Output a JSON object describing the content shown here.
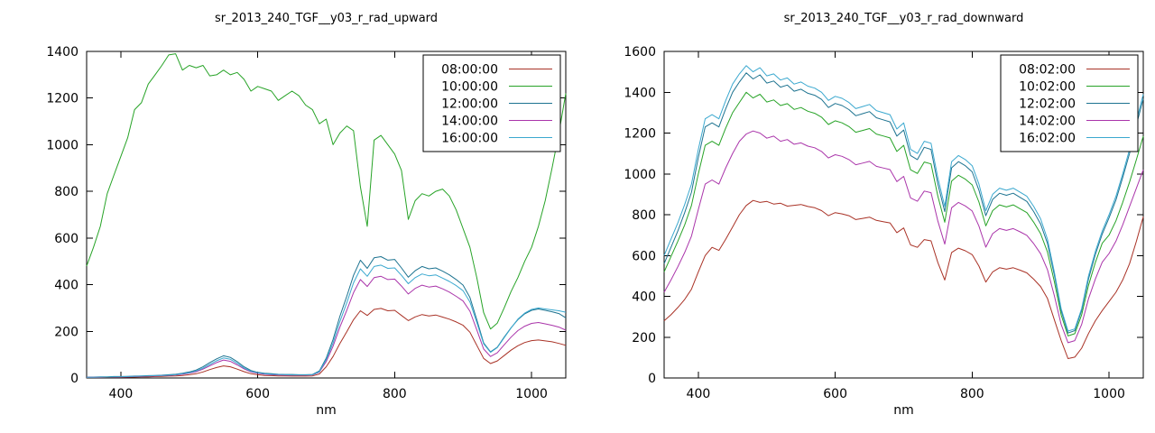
{
  "page": {
    "background": "#ffffff",
    "axis_color": "#000000",
    "text_color": "#000000"
  },
  "chart_data": [
    {
      "type": "line",
      "title": "sr_2013_240_TGF__y03_r_rad_upward",
      "xlabel": "nm",
      "ylabel": "",
      "xlim": [
        350,
        1050
      ],
      "ylim": [
        0,
        1400
      ],
      "xticks": [
        400,
        600,
        800,
        1000
      ],
      "yticks": [
        0,
        200,
        400,
        600,
        800,
        1000,
        1200,
        1400
      ],
      "grid": false,
      "legend_position": "top-right",
      "x": [
        350,
        360,
        370,
        380,
        390,
        400,
        410,
        420,
        430,
        440,
        450,
        460,
        470,
        480,
        490,
        500,
        510,
        520,
        530,
        540,
        550,
        560,
        570,
        580,
        590,
        600,
        610,
        620,
        630,
        640,
        650,
        660,
        670,
        680,
        690,
        700,
        710,
        720,
        730,
        740,
        750,
        760,
        770,
        780,
        790,
        800,
        810,
        820,
        830,
        840,
        850,
        860,
        870,
        880,
        890,
        900,
        910,
        920,
        930,
        940,
        950,
        960,
        970,
        980,
        990,
        1000,
        1010,
        1020,
        1030,
        1040,
        1050
      ],
      "series": [
        {
          "name": "08:00:00",
          "color": "#a93226",
          "values": [
            2,
            2,
            2,
            3,
            3,
            3,
            4,
            4,
            5,
            5,
            6,
            7,
            8,
            9,
            11,
            14,
            18,
            26,
            36,
            45,
            52,
            48,
            38,
            27,
            18,
            14,
            11,
            10,
            9,
            9,
            8,
            8,
            8,
            9,
            17,
            48,
            92,
            148,
            198,
            250,
            288,
            268,
            294,
            298,
            288,
            290,
            268,
            246,
            262,
            272,
            266,
            270,
            261,
            252,
            240,
            226,
            196,
            140,
            84,
            62,
            73,
            96,
            119,
            138,
            152,
            160,
            163,
            159,
            155,
            148,
            140
          ]
        },
        {
          "name": "10:00:00",
          "color": "#27a327",
          "values": [
            480,
            560,
            650,
            790,
            870,
            950,
            1030,
            1150,
            1180,
            1260,
            1300,
            1340,
            1385,
            1390,
            1320,
            1340,
            1330,
            1340,
            1295,
            1300,
            1320,
            1300,
            1310,
            1280,
            1230,
            1250,
            1240,
            1230,
            1190,
            1210,
            1230,
            1210,
            1170,
            1150,
            1090,
            1110,
            1000,
            1050,
            1080,
            1060,
            820,
            650,
            1020,
            1040,
            1000,
            960,
            890,
            680,
            760,
            790,
            780,
            800,
            810,
            780,
            720,
            640,
            560,
            430,
            280,
            210,
            235,
            300,
            370,
            430,
            500,
            560,
            650,
            760,
            900,
            1050,
            1220
          ]
        },
        {
          "name": "12:00:00",
          "color": "#1d7390",
          "values": [
            4,
            4,
            5,
            5,
            6,
            6,
            7,
            8,
            9,
            10,
            11,
            12,
            14,
            16,
            20,
            26,
            34,
            48,
            66,
            82,
            95,
            88,
            70,
            48,
            32,
            24,
            20,
            18,
            16,
            15,
            15,
            14,
            14,
            15,
            30,
            85,
            165,
            265,
            350,
            440,
            505,
            470,
            515,
            520,
            505,
            508,
            472,
            432,
            460,
            478,
            468,
            472,
            458,
            442,
            422,
            398,
            345,
            250,
            150,
            112,
            132,
            175,
            215,
            250,
            275,
            290,
            296,
            290,
            284,
            276,
            258
          ]
        },
        {
          "name": "14:00:00",
          "color": "#aa35aa",
          "values": [
            3,
            3,
            3,
            4,
            4,
            5,
            5,
            6,
            7,
            8,
            9,
            10,
            11,
            13,
            16,
            21,
            27,
            38,
            52,
            66,
            77,
            71,
            56,
            39,
            26,
            20,
            16,
            14,
            13,
            12,
            12,
            12,
            12,
            13,
            25,
            70,
            136,
            218,
            290,
            366,
            422,
            392,
            430,
            436,
            422,
            424,
            394,
            360,
            384,
            398,
            390,
            394,
            382,
            368,
            350,
            330,
            286,
            206,
            124,
            92,
            108,
            142,
            175,
            203,
            222,
            234,
            238,
            232,
            226,
            218,
            205
          ]
        },
        {
          "name": "16:00:00",
          "color": "#3aa8cf",
          "values": [
            3,
            3,
            4,
            4,
            5,
            5,
            6,
            7,
            8,
            9,
            10,
            11,
            12,
            14,
            18,
            23,
            30,
            42,
            58,
            74,
            86,
            80,
            63,
            43,
            29,
            22,
            18,
            16,
            15,
            14,
            13,
            13,
            13,
            14,
            27,
            78,
            150,
            242,
            322,
            408,
            468,
            436,
            478,
            484,
            470,
            472,
            440,
            404,
            430,
            446,
            438,
            442,
            428,
            414,
            396,
            374,
            326,
            238,
            146,
            110,
            130,
            172,
            214,
            252,
            278,
            294,
            300,
            296,
            292,
            288,
            282
          ]
        }
      ]
    },
    {
      "type": "line",
      "title": "sr_2013_240_TGF__y03_r_rad_downward",
      "xlabel": "nm",
      "ylabel": "",
      "xlim": [
        350,
        1050
      ],
      "ylim": [
        0,
        1600
      ],
      "xticks": [
        400,
        600,
        800,
        1000
      ],
      "yticks": [
        0,
        200,
        400,
        600,
        800,
        1000,
        1200,
        1400,
        1600
      ],
      "grid": false,
      "legend_position": "top-right",
      "x": [
        350,
        360,
        370,
        380,
        390,
        400,
        410,
        420,
        430,
        440,
        450,
        460,
        470,
        480,
        490,
        500,
        510,
        520,
        530,
        540,
        550,
        560,
        570,
        580,
        590,
        600,
        610,
        620,
        630,
        640,
        650,
        660,
        670,
        680,
        690,
        700,
        710,
        720,
        730,
        740,
        750,
        760,
        770,
        780,
        790,
        800,
        810,
        820,
        830,
        840,
        850,
        860,
        870,
        880,
        890,
        900,
        910,
        920,
        930,
        940,
        950,
        960,
        970,
        980,
        990,
        1000,
        1010,
        1020,
        1030,
        1040,
        1050
      ],
      "series": [
        {
          "name": "08:02:00",
          "color": "#a93226",
          "values": [
            280,
            310,
            345,
            385,
            435,
            520,
            600,
            640,
            625,
            680,
            740,
            800,
            845,
            870,
            860,
            865,
            852,
            856,
            842,
            846,
            850,
            840,
            834,
            820,
            795,
            810,
            804,
            795,
            776,
            782,
            788,
            772,
            766,
            760,
            712,
            735,
            652,
            640,
            678,
            672,
            565,
            480,
            615,
            636,
            623,
            604,
            548,
            470,
            520,
            540,
            533,
            540,
            528,
            515,
            484,
            448,
            390,
            286,
            184,
            95,
            102,
            146,
            218,
            280,
            330,
            375,
            420,
            480,
            560,
            670,
            790
          ]
        },
        {
          "name": "10:02:00",
          "color": "#27a327",
          "values": [
            520,
            595,
            670,
            750,
            845,
            1000,
            1140,
            1160,
            1140,
            1225,
            1300,
            1350,
            1400,
            1372,
            1390,
            1352,
            1362,
            1335,
            1344,
            1316,
            1325,
            1307,
            1297,
            1278,
            1242,
            1260,
            1250,
            1232,
            1204,
            1213,
            1222,
            1195,
            1186,
            1176,
            1110,
            1140,
            1020,
            1002,
            1058,
            1049,
            890,
            763,
            965,
            993,
            974,
            946,
            862,
            745,
            820,
            848,
            838,
            848,
            829,
            810,
            763,
            707,
            618,
            473,
            309,
            206,
            217,
            309,
            454,
            566,
            660,
            700,
            770,
            860,
            960,
            1070,
            1185
          ]
        },
        {
          "name": "12:02:00",
          "color": "#1d7390",
          "values": [
            560,
            640,
            720,
            810,
            910,
            1080,
            1230,
            1250,
            1230,
            1320,
            1400,
            1450,
            1495,
            1465,
            1485,
            1445,
            1455,
            1425,
            1435,
            1405,
            1415,
            1395,
            1385,
            1365,
            1325,
            1345,
            1335,
            1315,
            1285,
            1295,
            1305,
            1275,
            1265,
            1255,
            1185,
            1215,
            1090,
            1070,
            1130,
            1120,
            950,
            815,
            1030,
            1060,
            1040,
            1010,
            920,
            795,
            875,
            905,
            895,
            905,
            885,
            865,
            815,
            755,
            660,
            505,
            330,
            220,
            232,
            330,
            485,
            605,
            705,
            785,
            872,
            982,
            1100,
            1240,
            1368
          ]
        },
        {
          "name": "14:02:00",
          "color": "#aa35aa",
          "values": [
            420,
            480,
            545,
            615,
            695,
            825,
            950,
            970,
            950,
            1030,
            1100,
            1160,
            1195,
            1210,
            1200,
            1175,
            1185,
            1160,
            1168,
            1145,
            1152,
            1136,
            1128,
            1110,
            1078,
            1094,
            1086,
            1070,
            1045,
            1053,
            1061,
            1037,
            1029,
            1021,
            962,
            988,
            882,
            866,
            916,
            908,
            768,
            656,
            834,
            860,
            843,
            818,
            744,
            641,
            707,
            732,
            723,
            732,
            716,
            699,
            658,
            609,
            531,
            404,
            262,
            173,
            183,
            262,
            388,
            485,
            567,
            610,
            670,
            750,
            840,
            930,
            1020
          ]
        },
        {
          "name": "16:02:00",
          "color": "#3aa8cf",
          "values": [
            600,
            680,
            760,
            850,
            950,
            1120,
            1270,
            1290,
            1270,
            1360,
            1440,
            1490,
            1530,
            1500,
            1520,
            1480,
            1490,
            1460,
            1470,
            1440,
            1450,
            1430,
            1420,
            1400,
            1360,
            1380,
            1370,
            1350,
            1320,
            1330,
            1340,
            1310,
            1300,
            1290,
            1220,
            1250,
            1120,
            1100,
            1160,
            1150,
            980,
            840,
            1060,
            1090,
            1070,
            1040,
            950,
            820,
            900,
            930,
            920,
            930,
            910,
            890,
            840,
            780,
            680,
            520,
            340,
            230,
            240,
            340,
            500,
            620,
            720,
            800,
            890,
            1000,
            1120,
            1260,
            1390
          ]
        }
      ]
    }
  ]
}
